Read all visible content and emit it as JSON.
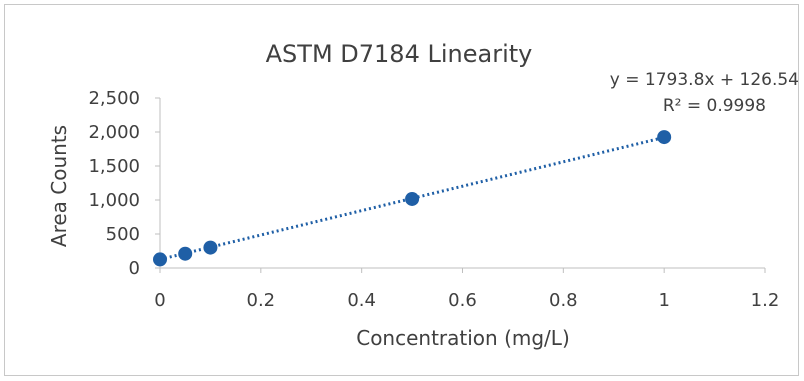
{
  "chart_data": {
    "type": "scatter",
    "title": "ASTM D7184 Linearity",
    "xlabel": "Concentration (mg/L)",
    "ylabel": "Area Counts",
    "xlim": [
      0,
      1.2
    ],
    "ylim": [
      0,
      2500
    ],
    "x_ticks": [
      "0",
      "0.2",
      "0.4",
      "0.6",
      "0.8",
      "1",
      "1.2"
    ],
    "y_ticks": [
      "0",
      "500",
      "1,000",
      "1,500",
      "2,000",
      "2,500"
    ],
    "grid": false,
    "legend": "none",
    "series": [
      {
        "x": [
          0,
          0.05,
          0.1,
          0.5,
          1.0
        ],
        "y": [
          126,
          210,
          300,
          1015,
          1925
        ],
        "color": "#1f5fa6"
      }
    ],
    "trendline": {
      "type": "linear",
      "slope": 1793.8,
      "intercept": 126.54,
      "x_range": [
        0,
        1
      ],
      "style": "dotted",
      "color": "#1f5fa6",
      "equation_label": "y = 1793.8x + 126.54",
      "r2_label": "R² = 0.9998"
    }
  }
}
